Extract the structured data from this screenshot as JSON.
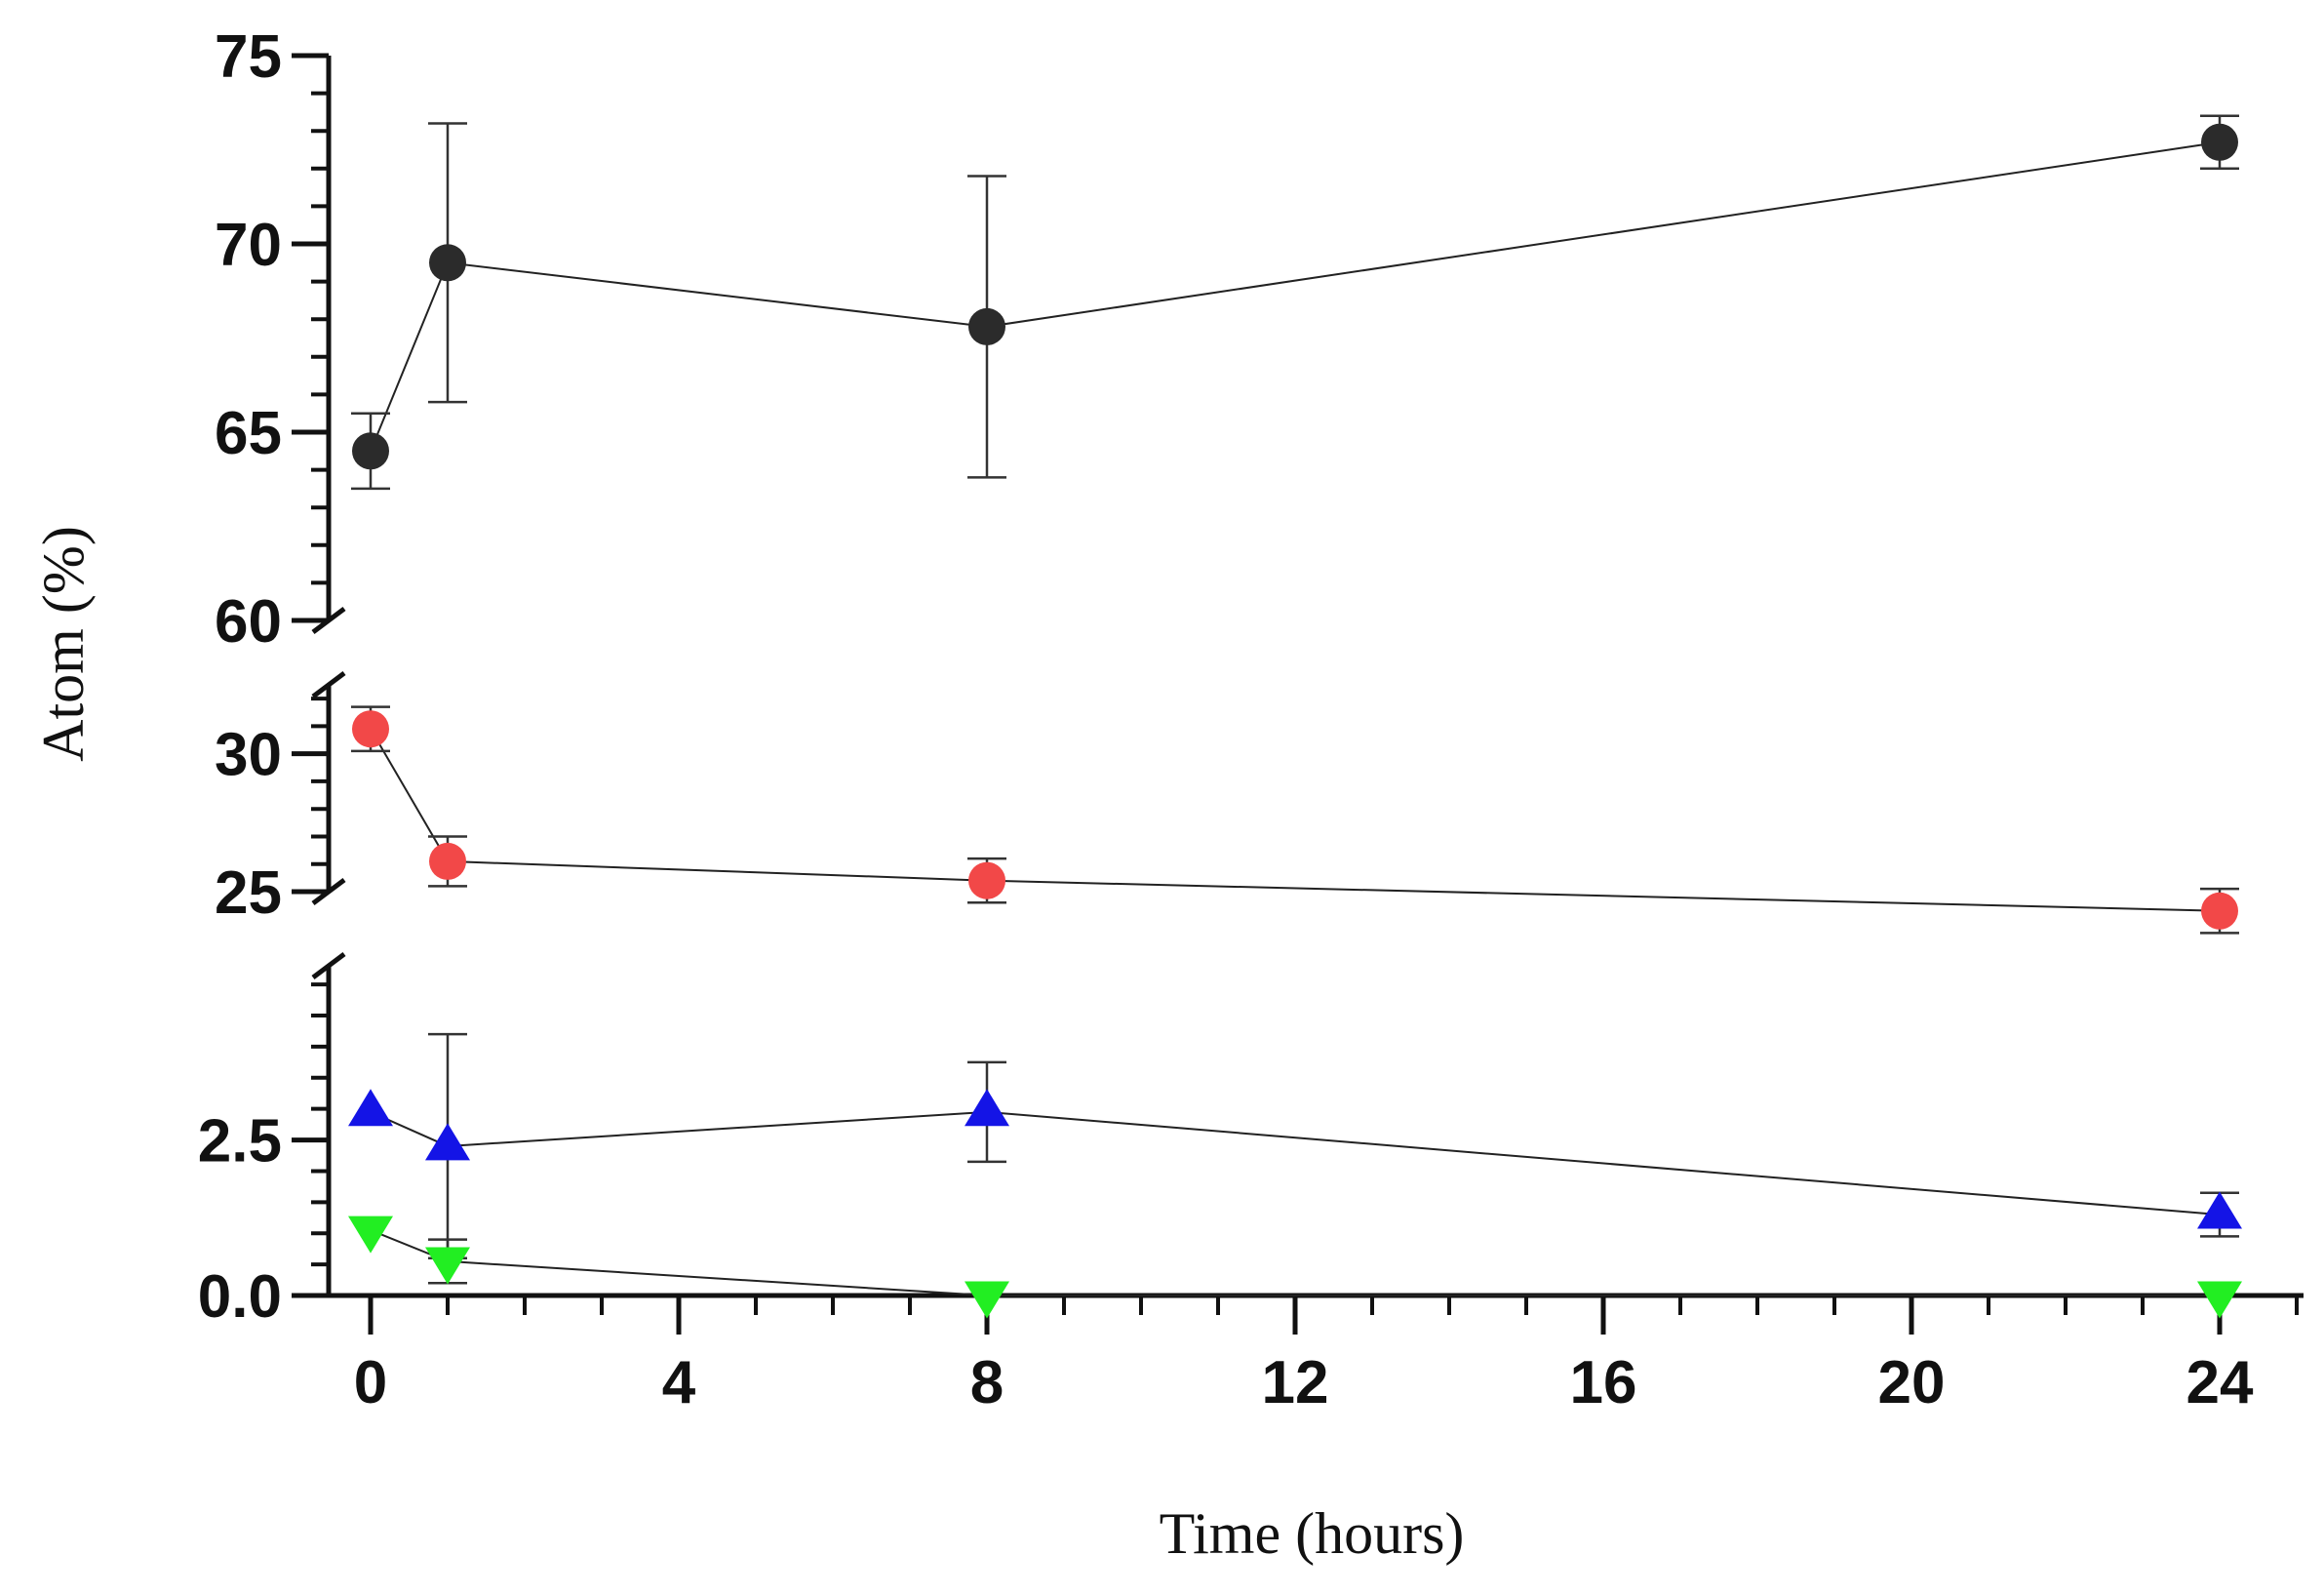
{
  "chart_data": {
    "type": "line",
    "title": "",
    "xlabel": "Time (hours)",
    "ylabel": "Atom (%)",
    "x": [
      0,
      1,
      8,
      24
    ],
    "xlim": [
      -0.5,
      25.2
    ],
    "xticks_major": [
      "0",
      "4",
      "8",
      "12",
      "16",
      "20",
      "24"
    ],
    "y_axis_break": true,
    "y_segments": [
      {
        "range": [
          60,
          75
        ],
        "major_ticks": [
          "60",
          "65",
          "70",
          "75"
        ],
        "minor_step": 1
      },
      {
        "range": [
          25,
          32.5
        ],
        "major_ticks": [
          "25",
          "30"
        ],
        "minor_step": 1
      },
      {
        "range": [
          0,
          5.3
        ],
        "major_ticks": [
          "0.0",
          "2.5"
        ],
        "minor_step": 0.5
      }
    ],
    "grid": false,
    "series": [
      {
        "marker": "circle",
        "color": "#2b2b2b",
        "values": [
          64.5,
          69.5,
          67.8,
          72.7
        ],
        "err": [
          1.0,
          3.7,
          4.0,
          0.7
        ]
      },
      {
        "marker": "circle",
        "color": "#f24848",
        "values": [
          30.9,
          26.1,
          25.4,
          24.3
        ],
        "err": [
          0.8,
          0.9,
          0.8,
          0.8
        ]
      },
      {
        "marker": "triangle-up",
        "color": "#1414e6",
        "values": [
          2.95,
          2.4,
          2.95,
          1.3
        ],
        "err": [
          0,
          1.8,
          0.8,
          0.35
        ]
      },
      {
        "marker": "triangle-down",
        "color": "#22ee22",
        "values": [
          1.05,
          0.55,
          0.0,
          0.0
        ],
        "err": [
          0,
          0.35,
          0,
          0
        ]
      }
    ]
  }
}
